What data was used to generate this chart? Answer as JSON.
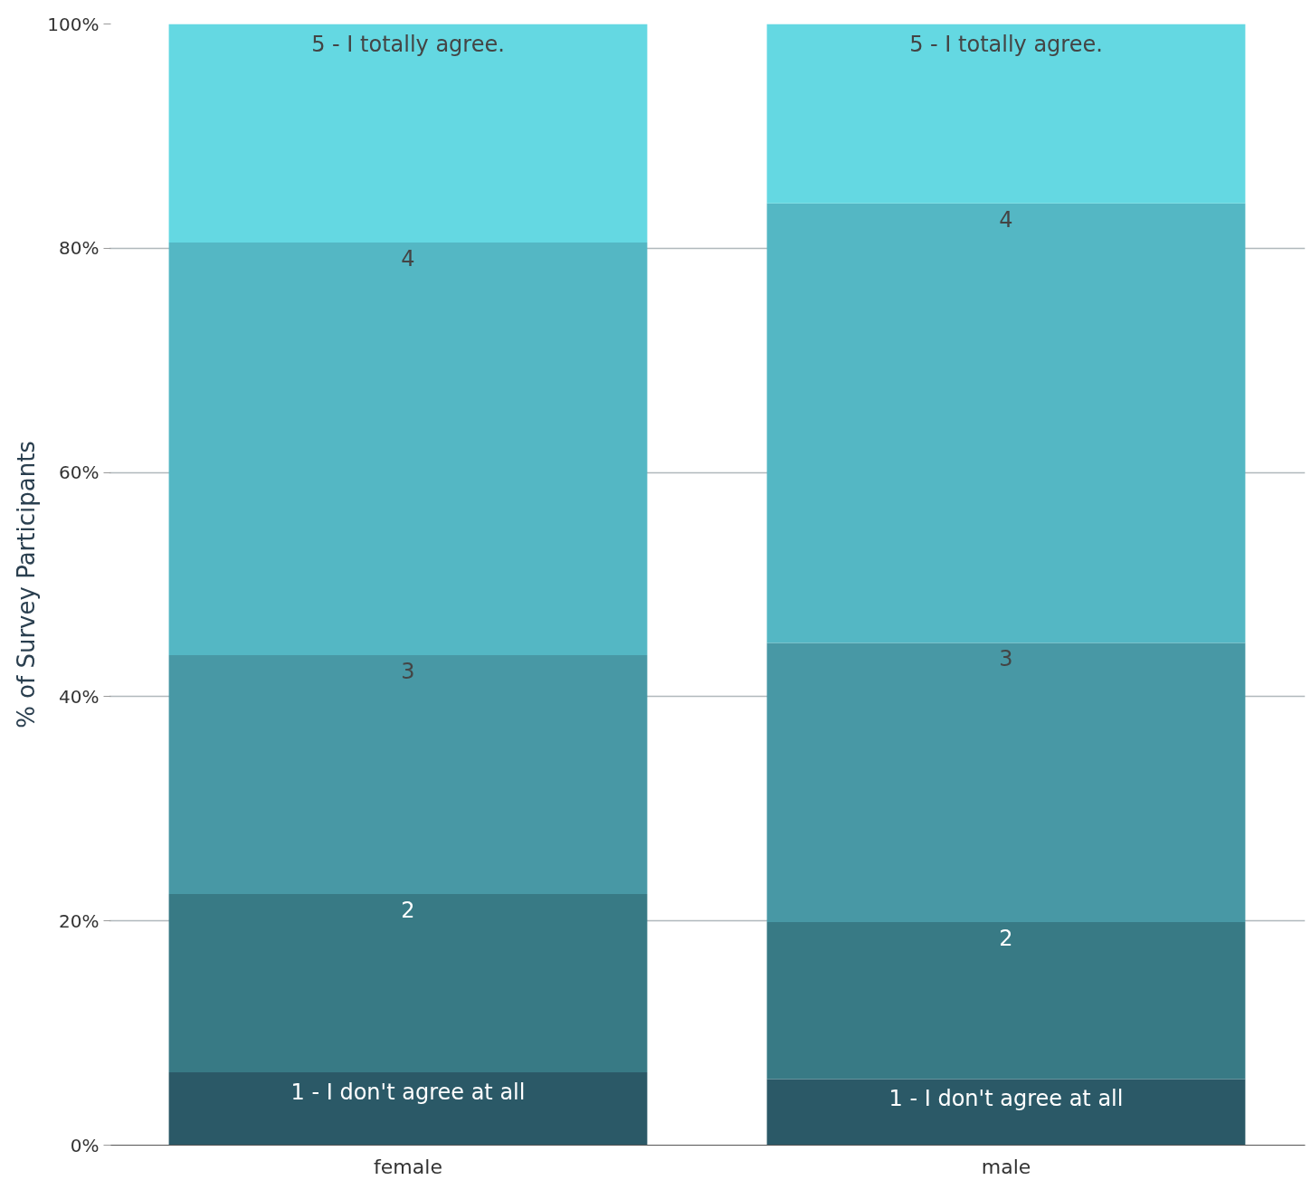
{
  "chart_data": {
    "type": "bar",
    "stacked": true,
    "ylabel": "% of Survey Participants",
    "categories": [
      "female",
      "male"
    ],
    "series": [
      {
        "name": "1 - I don't agree at all",
        "color": "#2b5967",
        "values": [
          6.5,
          5.9
        ]
      },
      {
        "name": "2",
        "color": "#387a85",
        "values": [
          15.9,
          14.0
        ]
      },
      {
        "name": "3",
        "color": "#4898a5",
        "values": [
          21.3,
          24.9
        ]
      },
      {
        "name": "4",
        "color": "#54b7c4",
        "values": [
          36.8,
          39.2
        ]
      },
      {
        "name": "5 - I totally agree.",
        "color": "#64d8e2",
        "values": [
          19.5,
          16.0
        ]
      }
    ],
    "ylim": [
      0,
      100
    ],
    "yticks": [
      {
        "value": 0,
        "label": "0%"
      },
      {
        "value": 20,
        "label": "20%"
      },
      {
        "value": 40,
        "label": "40%"
      },
      {
        "value": 60,
        "label": "60%"
      },
      {
        "value": 80,
        "label": "80%"
      },
      {
        "value": 100,
        "label": "100%"
      }
    ],
    "grid": "y"
  }
}
